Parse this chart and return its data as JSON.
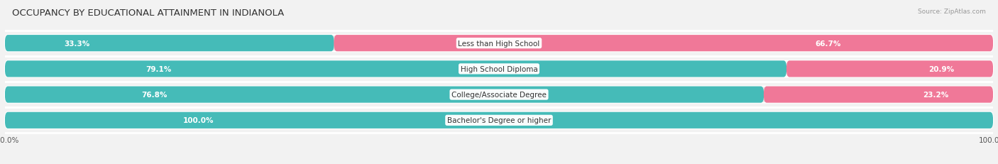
{
  "title": "OCCUPANCY BY EDUCATIONAL ATTAINMENT IN INDIANOLA",
  "source": "Source: ZipAtlas.com",
  "categories": [
    "Less than High School",
    "High School Diploma",
    "College/Associate Degree",
    "Bachelor's Degree or higher"
  ],
  "owner_pct": [
    33.3,
    79.1,
    76.8,
    100.0
  ],
  "renter_pct": [
    66.7,
    20.9,
    23.2,
    0.0
  ],
  "owner_color": "#45bbb8",
  "renter_color": "#f07898",
  "bg_color": "#f2f2f2",
  "row_bg_even": "#e8e8e8",
  "row_bg_odd": "#f8f8f8",
  "bar_height": 0.62,
  "title_fontsize": 9.5,
  "label_fontsize": 7.5,
  "cat_fontsize": 7.5,
  "legend_fontsize": 8,
  "xlim": 100
}
